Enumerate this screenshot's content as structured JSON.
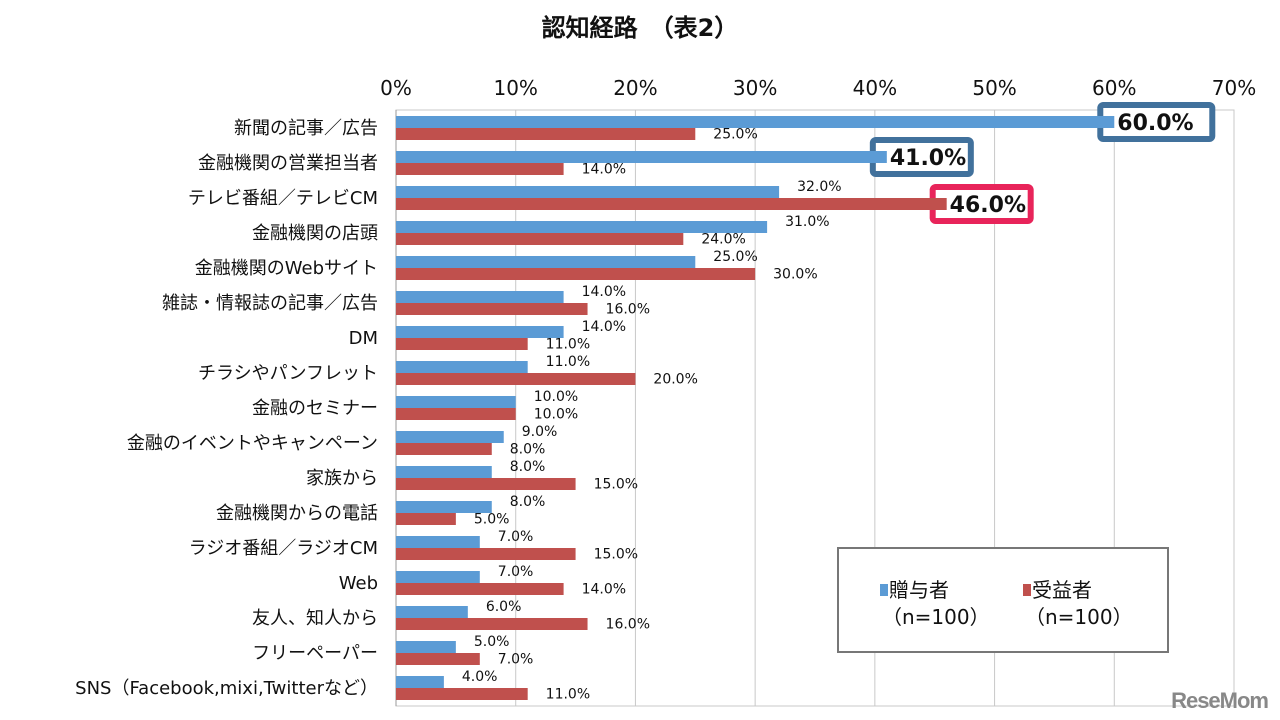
{
  "chart_data": {
    "type": "bar",
    "orientation": "horizontal",
    "title": "認知経路　（表2）",
    "xlim": [
      0,
      70
    ],
    "xticks": [
      "0%",
      "10%",
      "20%",
      "30%",
      "40%",
      "50%",
      "60%",
      "70%"
    ],
    "grid": true,
    "legend_position": "bottom-right",
    "categories": [
      "新聞の記事／広告",
      "金融機関の営業担当者",
      "テレビ番組／テレビCM",
      "金融機関の店頭",
      "金融機関のWebサイト",
      "雑誌・情報誌の記事／広告",
      "DM",
      "チラシやパンフレット",
      "金融のセミナー",
      "金融のイベントやキャンペーン",
      "家族から",
      "金融機関からの電話",
      "ラジオ番組／ラジオCM",
      "Web",
      "友人、知人から",
      "フリーペーパー",
      "SNS（Facebook,mixi,Twitterなど）"
    ],
    "series": [
      {
        "name": "贈与者",
        "sub": "（n=100）",
        "color": "#5b9bd5",
        "values": [
          60,
          41,
          32,
          31,
          25,
          14,
          14,
          11,
          10,
          9,
          8,
          8,
          7,
          7,
          6,
          5,
          4
        ],
        "labels": [
          "60.0%",
          "41.0%",
          "32.0%",
          "31.0%",
          "25.0%",
          "14.0%",
          "14.0%",
          "11.0%",
          "10.0%",
          "9.0%",
          "8.0%",
          "8.0%",
          "7.0%",
          "7.0%",
          "6.0%",
          "5.0%",
          "4.0%"
        ],
        "highlight": [
          0,
          1
        ],
        "highlight_color": "#41719c"
      },
      {
        "name": "受益者",
        "sub": "（n=100）",
        "color": "#c0504d",
        "values": [
          25,
          14,
          46,
          24,
          30,
          16,
          11,
          20,
          10,
          8,
          15,
          5,
          15,
          14,
          16,
          7,
          11
        ],
        "labels": [
          "25.0%",
          "14.0%",
          "46.0%",
          "24.0%",
          "30.0%",
          "16.0%",
          "11.0%",
          "20.0%",
          "10.0%",
          "8.0%",
          "15.0%",
          "5.0%",
          "15.0%",
          "14.0%",
          "16.0%",
          "7.0%",
          "11.0%"
        ],
        "highlight": [
          2
        ],
        "highlight_color": "#e8245a"
      }
    ]
  },
  "watermark": "ReseMom"
}
